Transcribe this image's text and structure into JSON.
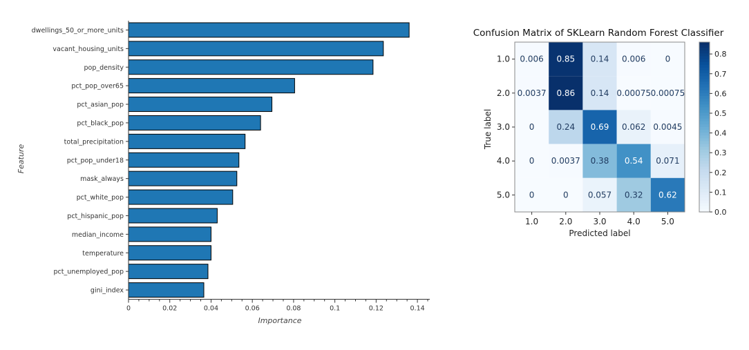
{
  "chart_data": [
    {
      "type": "bar",
      "orientation": "horizontal",
      "categories": [
        "dwellings_50_or_more_units",
        "vacant_housing_units",
        "pop_density",
        "pct_pop_over65",
        "pct_asian_pop",
        "pct_black_pop",
        "total_precipitation",
        "pct_pop_under18",
        "mask_always",
        "pct_white_pop",
        "pct_hispanic_pop",
        "median_income",
        "temperature",
        "pct_unemployed_pop",
        "gini_index"
      ],
      "values": [
        0.136,
        0.1235,
        0.1185,
        0.0805,
        0.0695,
        0.064,
        0.0565,
        0.0535,
        0.0525,
        0.0505,
        0.043,
        0.04,
        0.04,
        0.0385,
        0.0365
      ],
      "xlabel": "Importance",
      "ylabel": "Feature",
      "xlim": [
        0,
        0.146
      ],
      "xticks": [
        0,
        0.02,
        0.04,
        0.06,
        0.08,
        0.1,
        0.12,
        0.14
      ],
      "xtick_labels": [
        "0",
        "0.02",
        "0.04",
        "0.06",
        "0.08",
        "0.1",
        "0.12",
        "0.14"
      ],
      "bar_color": "#1f77b4",
      "grid": false
    },
    {
      "type": "heatmap",
      "title": "Confusion Matrix of SKLearn Random Forest Classifier",
      "xlabel": "Predicted label",
      "ylabel": "True label",
      "x_categories": [
        "1.0",
        "2.0",
        "3.0",
        "4.0",
        "5.0"
      ],
      "y_categories": [
        "1.0",
        "2.0",
        "3.0",
        "4.0",
        "5.0"
      ],
      "values": [
        [
          0.006,
          0.85,
          0.14,
          0.006,
          0
        ],
        [
          0.0037,
          0.86,
          0.14,
          0.00075,
          0.00075
        ],
        [
          0,
          0.24,
          0.69,
          0.062,
          0.0045
        ],
        [
          0,
          0.0037,
          0.38,
          0.54,
          0.071
        ],
        [
          0,
          0,
          0.057,
          0.32,
          0.62
        ]
      ],
      "cell_labels": [
        [
          "0.006",
          "0.85",
          "0.14",
          "0.006",
          "0"
        ],
        [
          "0.0037",
          "0.86",
          "0.14",
          "0.00075",
          "0.00075"
        ],
        [
          "0",
          "0.24",
          "0.69",
          "0.062",
          "0.0045"
        ],
        [
          "0",
          "0.0037",
          "0.38",
          "0.54",
          "0.071"
        ],
        [
          "0",
          "0",
          "0.057",
          "0.32",
          "0.62"
        ]
      ],
      "colormap": "Blues",
      "colorbar_range": [
        0,
        0.86
      ],
      "colorbar_ticks": [
        0,
        0.1,
        0.2,
        0.3,
        0.4,
        0.5,
        0.6,
        0.7,
        0.8
      ],
      "colorbar_tick_labels": [
        "0.0",
        "0.1",
        "0.2",
        "0.3",
        "0.4",
        "0.5",
        "0.6",
        "0.7",
        "0.8"
      ],
      "grid": false
    }
  ]
}
